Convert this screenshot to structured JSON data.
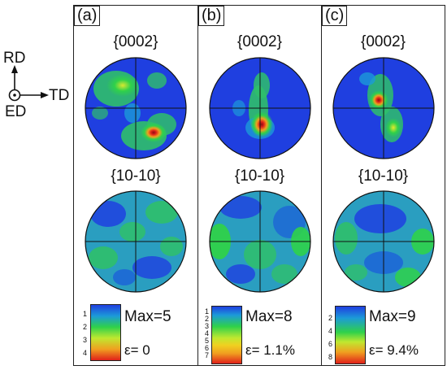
{
  "axes": {
    "rd": "RD",
    "td": "TD",
    "ed": "ED"
  },
  "panels": [
    {
      "tag": "(a)",
      "top_plane": "{0002}",
      "bottom_plane": "{10-10}",
      "legend_ticks": [
        "1",
        "2",
        "3",
        "4"
      ],
      "max_label": "Max=5",
      "strain_label": "ε= 0"
    },
    {
      "tag": "(b)",
      "top_plane": "{0002}",
      "bottom_plane": "{10-10}",
      "legend_ticks": [
        "1",
        "2",
        "3",
        "4",
        "5",
        "6",
        "7"
      ],
      "max_label": "Max=8",
      "strain_label": "ε= 1.1%"
    },
    {
      "tag": "(c)",
      "top_plane": "{0002}",
      "bottom_plane": "{10-10}",
      "legend_ticks": [
        "2",
        "4",
        "6",
        "8"
      ],
      "max_label": "Max=9",
      "strain_label": "ε= 9.4%"
    }
  ],
  "colors": {
    "background": "#ffffff",
    "pole_base": "#1f3fe0",
    "contour_low": "#1c9ad8",
    "contour_mid": "#2fd14a",
    "contour_high": "#e8e82a",
    "peak": "#e0201a",
    "peak_core": "#8a0f0f",
    "frame": "#222222"
  }
}
